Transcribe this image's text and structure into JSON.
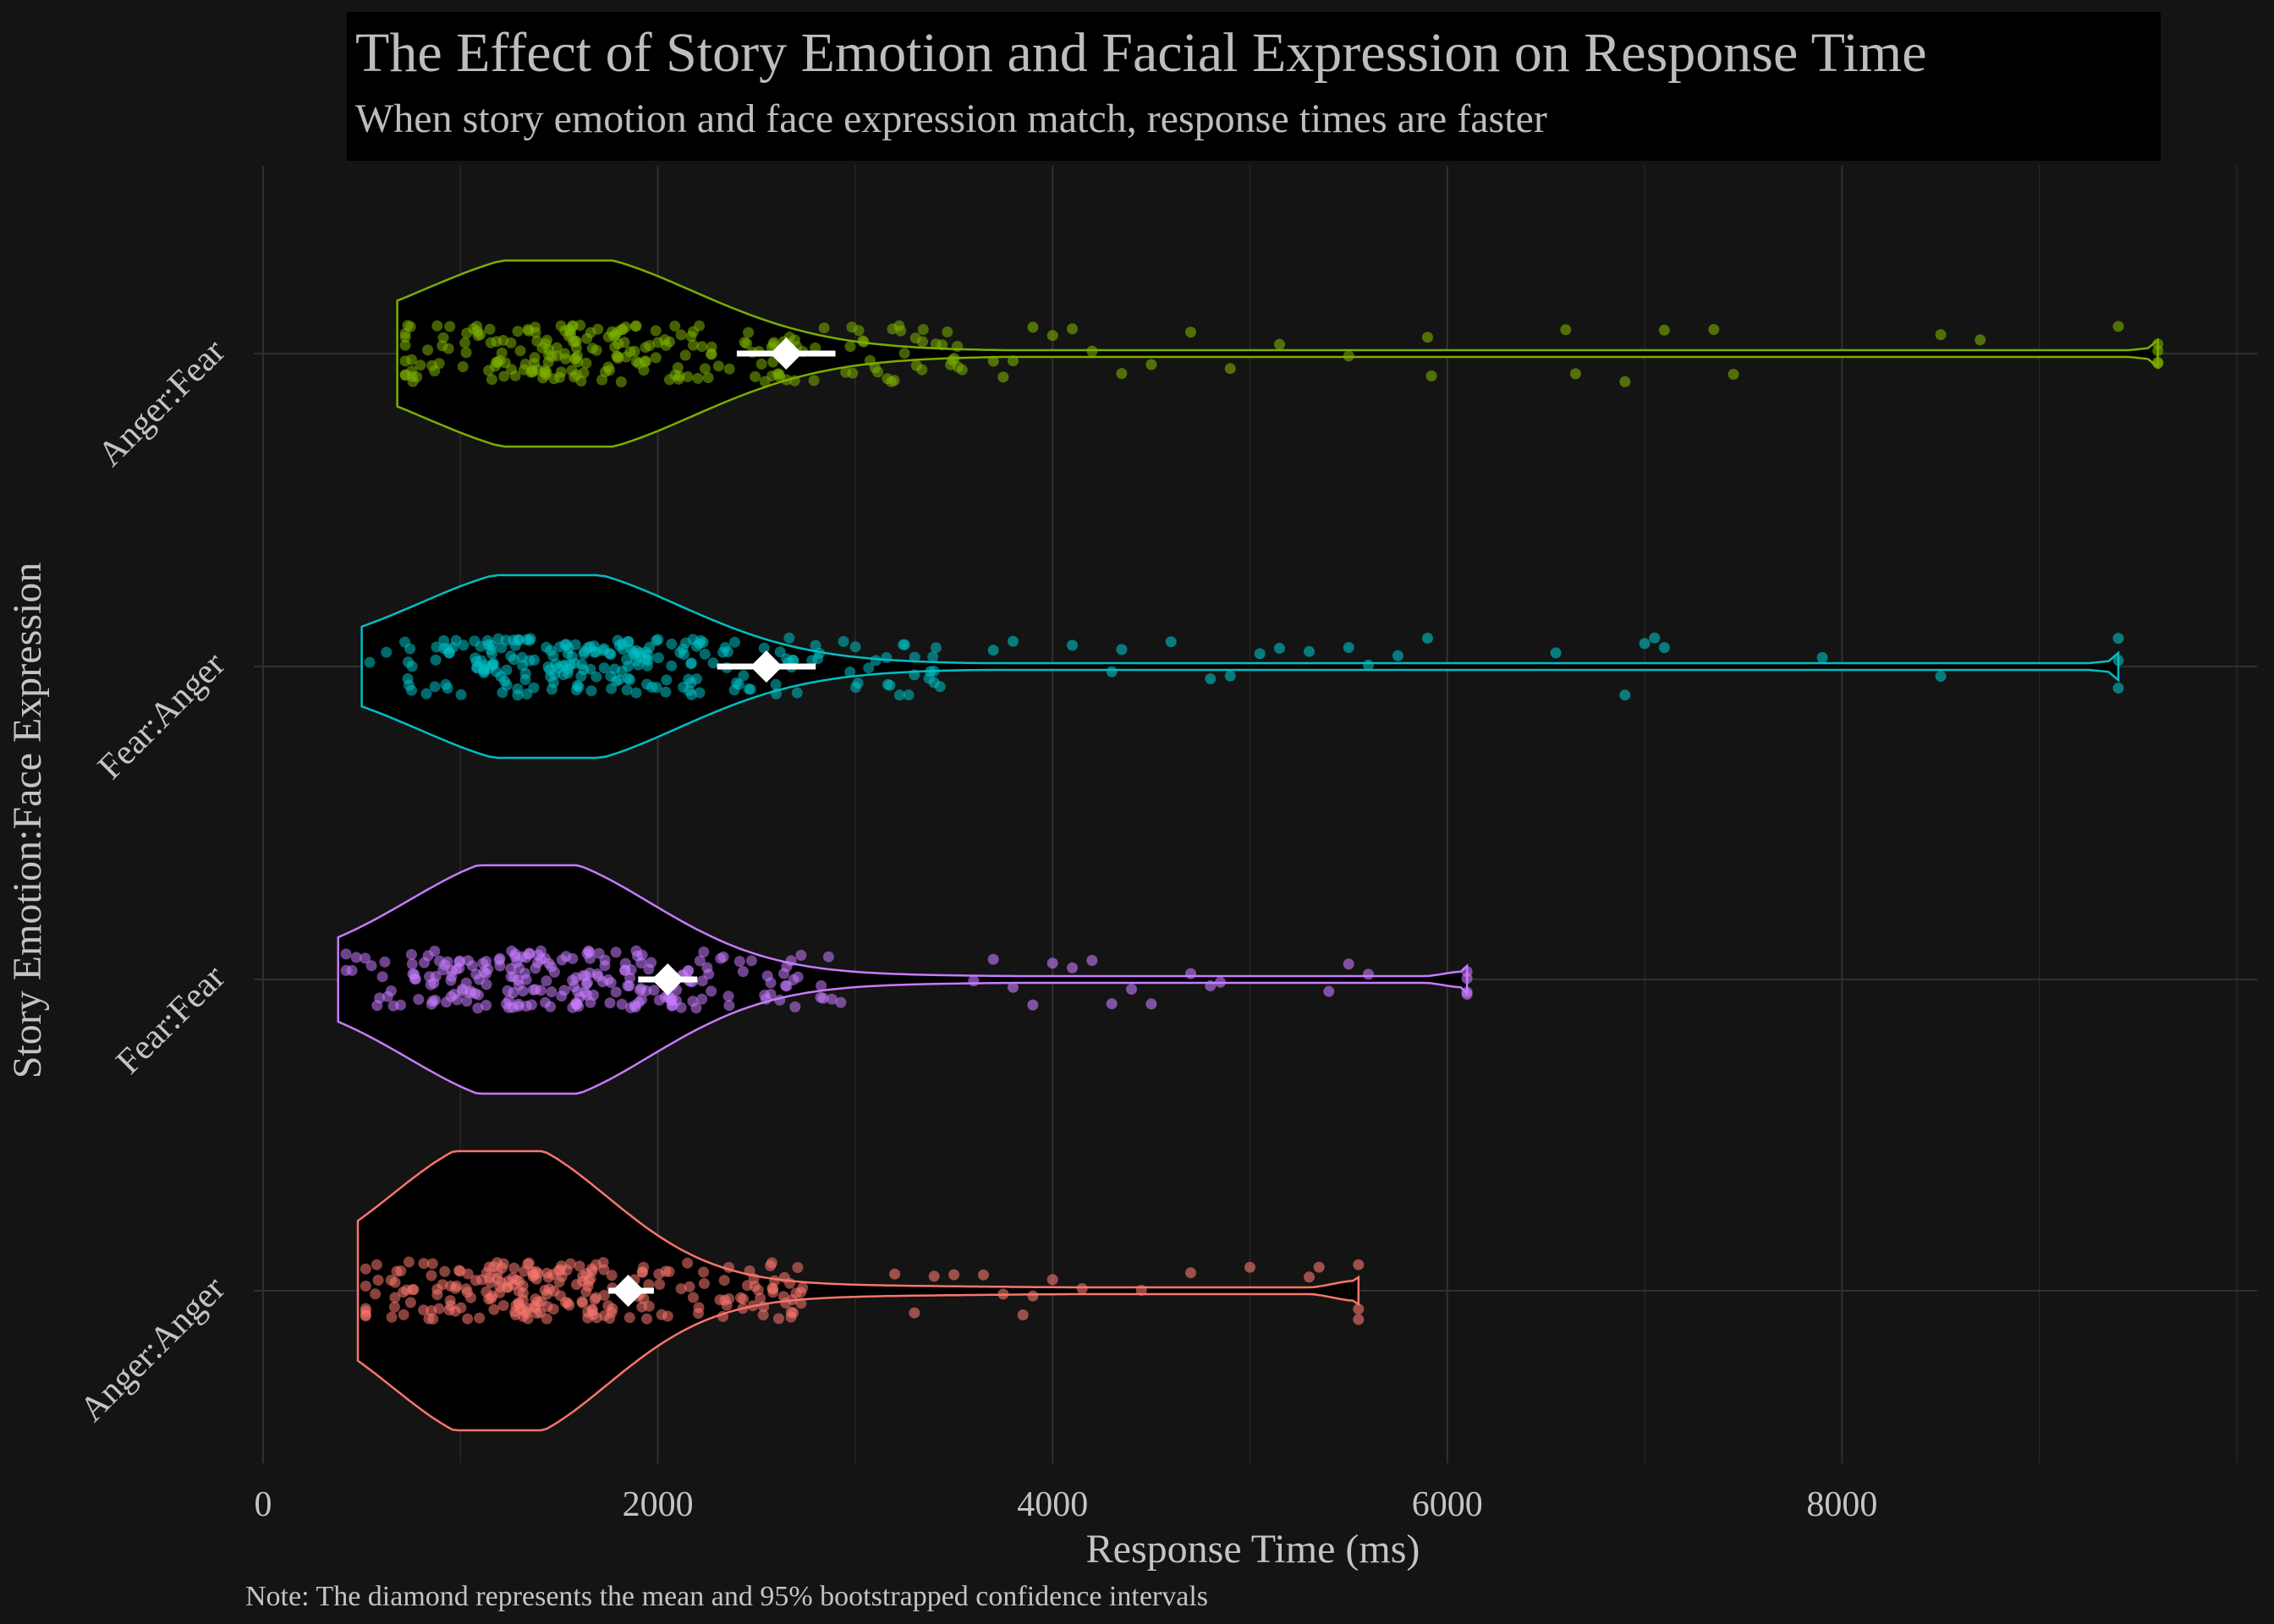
{
  "chart_data": {
    "type": "violin",
    "orientation": "horizontal",
    "title": "The Effect of Story Emotion and Facial Expression on Response Time",
    "subtitle": "When story emotion and face expression match, response times are faster",
    "xlabel": "Response Time (ms)",
    "ylabel": "Story Emotion:Face Expression",
    "caption": "Note: The diamond represents the mean and 95% bootstrapped confidence intervals",
    "xlim": [
      0,
      10000
    ],
    "x_ticks": [
      0,
      2000,
      4000,
      6000,
      8000
    ],
    "x_tick_labels": [
      "0",
      "2000",
      "4000",
      "6000",
      "8000"
    ],
    "grid": true,
    "legend": "none",
    "groups": [
      {
        "label": "Anger:Fear",
        "color": "#7cae00",
        "min": 680,
        "max": 9600,
        "mean": 2650,
        "ci": [
          2400,
          2900
        ],
        "mode": 1500,
        "outliers": [
          3700,
          3750,
          3800,
          3900,
          4000,
          4100,
          4200,
          4350,
          4500,
          4700,
          4900,
          5150,
          5500,
          5900,
          5920,
          6600,
          6650,
          6900,
          7100,
          7350,
          7450,
          8500,
          8700,
          9400,
          9600,
          9600,
          9600,
          9600
        ]
      },
      {
        "label": "Fear:Anger",
        "color": "#00bfc4",
        "min": 500,
        "max": 9400,
        "mean": 2550,
        "ci": [
          2300,
          2800
        ],
        "mode": 1450,
        "outliers": [
          3700,
          3800,
          4100,
          4300,
          4350,
          4600,
          4800,
          4900,
          5050,
          5150,
          5300,
          5500,
          5600,
          5750,
          5900,
          6550,
          6900,
          7000,
          7050,
          7100,
          7900,
          8500,
          9400,
          9400,
          9400
        ]
      },
      {
        "label": "Fear:Fear",
        "color": "#c77cff",
        "min": 380,
        "max": 6100,
        "mean": 2050,
        "ci": [
          1900,
          2200
        ],
        "mode": 1350,
        "outliers": [
          3600,
          3700,
          3800,
          3900,
          4000,
          4100,
          4200,
          4300,
          4400,
          4500,
          4700,
          4800,
          4850,
          5400,
          5500,
          5600,
          6100,
          6100,
          6100,
          6100
        ]
      },
      {
        "label": "Anger:Anger",
        "color": "#f8766d",
        "min": 480,
        "max": 5550,
        "mean": 1850,
        "ci": [
          1750,
          1980
        ],
        "mode": 1200,
        "outliers": [
          3200,
          3300,
          3400,
          3500,
          3650,
          3750,
          3850,
          3900,
          4000,
          4150,
          4450,
          4700,
          5000,
          5300,
          5350,
          5550,
          5550,
          5550
        ]
      }
    ]
  }
}
